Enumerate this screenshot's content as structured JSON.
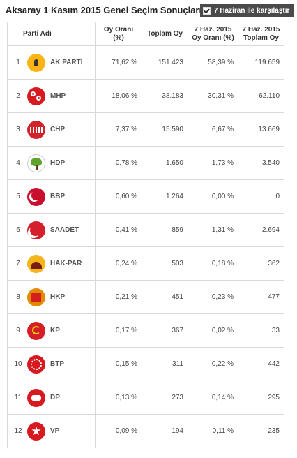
{
  "header": {
    "title": "Aksaray 1 Kasım 2015 Genel Seçim Sonuçları",
    "compare_label": "7 Haziran ile karşılaştır",
    "compare_checked": true
  },
  "table": {
    "columns": {
      "party": "Parti Adı",
      "vote_rate": "Oy Oranı (%)",
      "total_votes": "Toplam Oy",
      "june_rate_line1": "7 Haz. 2015",
      "june_rate_line2": "Oy Oranı (%)",
      "june_total_line1": "7 Haz. 2015",
      "june_total_line2": "Toplam Oy"
    },
    "rows": [
      {
        "rank": "1",
        "party": "AK PARTİ",
        "logo": "akp-bulb-icon",
        "rate": "71,62 %",
        "total": "151.423",
        "june_rate": "58,39 %",
        "june_total": "119.659"
      },
      {
        "rank": "2",
        "party": "MHP",
        "logo": "mhp-crescents-icon",
        "rate": "18,06 %",
        "total": "38.183",
        "june_rate": "30,31 %",
        "june_total": "62.110"
      },
      {
        "rank": "3",
        "party": "CHP",
        "logo": "chp-six-arrows-icon",
        "rate": "7,37 %",
        "total": "15.590",
        "june_rate": "6,67 %",
        "june_total": "13.669"
      },
      {
        "rank": "4",
        "party": "HDP",
        "logo": "hdp-tree-icon",
        "rate": "0,78 %",
        "total": "1.650",
        "june_rate": "1,73 %",
        "june_total": "3.540"
      },
      {
        "rank": "5",
        "party": "BBP",
        "logo": "bbp-crescent-icon",
        "rate": "0,60 %",
        "total": "1.264",
        "june_rate": "0,00 %",
        "june_total": "0"
      },
      {
        "rank": "6",
        "party": "SAADET",
        "logo": "saadet-crescent-icon",
        "rate": "0,41 %",
        "total": "859",
        "june_rate": "1,31 %",
        "june_total": "2.694"
      },
      {
        "rank": "7",
        "party": "HAK-PAR",
        "logo": "hakpar-sun-icon",
        "rate": "0,24 %",
        "total": "503",
        "june_rate": "0,18 %",
        "june_total": "362"
      },
      {
        "rank": "8",
        "party": "HKP",
        "logo": "hkp-flag-icon",
        "rate": "0,21 %",
        "total": "451",
        "june_rate": "0,23 %",
        "june_total": "477"
      },
      {
        "rank": "9",
        "party": "KP",
        "logo": "kp-hammer-sickle-icon",
        "rate": "0,17 %",
        "total": "367",
        "june_rate": "0,02 %",
        "june_total": "33"
      },
      {
        "rank": "10",
        "party": "BTP",
        "logo": "btp-crescent-stars-icon",
        "rate": "0,15 %",
        "total": "311",
        "june_rate": "0,22 %",
        "june_total": "442"
      },
      {
        "rank": "11",
        "party": "DP",
        "logo": "dp-horse-icon",
        "rate": "0,13 %",
        "total": "273",
        "june_rate": "0,14 %",
        "june_total": "295"
      },
      {
        "rank": "12",
        "party": "VP",
        "logo": "vp-star-icon",
        "rate": "0,09 %",
        "total": "194",
        "june_rate": "0,11 %",
        "june_total": "235"
      }
    ]
  }
}
